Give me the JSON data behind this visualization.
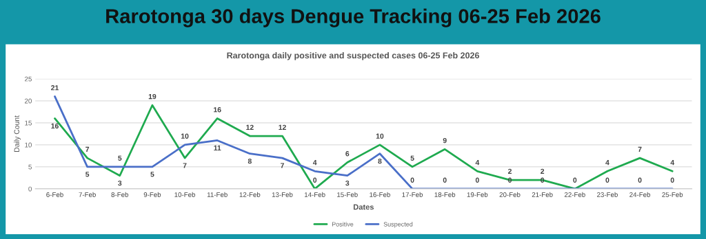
{
  "chart_data": {
    "type": "line",
    "title": "Rarotonga 30 days Dengue Tracking 06-25 Feb 2026",
    "subtitle": "Rarotonga daily positive and suspected cases 06-25 Feb 2026",
    "xlabel": "Dates",
    "ylabel": "Daily Count",
    "categories": [
      "6-Feb",
      "7-Feb",
      "8-Feb",
      "9-Feb",
      "10-Feb",
      "11-Feb",
      "12-Feb",
      "13-Feb",
      "14-Feb",
      "15-Feb",
      "16-Feb",
      "17-Feb",
      "18-Feb",
      "19-Feb",
      "20-Feb",
      "21-Feb",
      "22-Feb",
      "23-Feb",
      "24-Feb",
      "25-Feb"
    ],
    "series": [
      {
        "name": "Positive",
        "color": "#1faa4f",
        "values": [
          16,
          7,
          3,
          19,
          7,
          16,
          12,
          12,
          0,
          6,
          10,
          5,
          9,
          4,
          2,
          2,
          0,
          4,
          7,
          4
        ],
        "value_labels": [
          "16",
          "7",
          "3",
          "19",
          "7",
          "16",
          "12",
          "12",
          "0",
          "6",
          "10",
          "5",
          "9",
          "4",
          "2",
          "2",
          "0",
          "4",
          "7",
          "4"
        ]
      },
      {
        "name": "Suspected",
        "color": "#4a6fc8",
        "values": [
          21,
          5,
          5,
          5,
          10,
          11,
          8,
          7,
          4,
          3,
          8,
          0,
          0,
          0,
          0,
          0,
          0,
          0,
          0,
          0
        ],
        "value_labels": [
          "21",
          "5",
          "5",
          "5",
          "10",
          "11",
          "8",
          "7",
          "4",
          "3",
          "8",
          "0",
          "0",
          "0",
          "0",
          "0",
          null,
          "0",
          "0",
          "0"
        ]
      }
    ],
    "ylim": [
      0,
      25
    ],
    "yticks": [
      0,
      5,
      10,
      15,
      20,
      25
    ],
    "grid": "y",
    "legend": "bottom",
    "marker": "none",
    "line_style": "solid"
  }
}
